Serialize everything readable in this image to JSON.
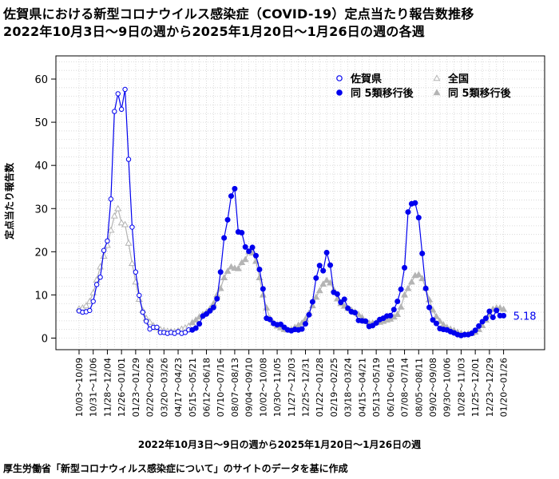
{
  "title_line1": "佐賀県における新型コロナウイルス感染症（COVID-19）定点当たり報告数推移",
  "title_line2": "2022年10月3日～9日の週から2025年1月20日～1月26日の週の各週",
  "source": "厚生労働省「新型コロナウィルス感染症について」のサイトのデータを基に作成",
  "colors": {
    "saga": "#0000ee",
    "national": "#b4b4b4",
    "grid": "#d2d2d2",
    "background": "#ffffff"
  },
  "chart_data": {
    "type": "line",
    "xlabel": "2022年10月3日～9日の週から2025年1月20日～1月26日の週",
    "ylabel": "定点当たり報告数",
    "ylim": [
      0,
      60
    ],
    "yticks": [
      0,
      10,
      20,
      30,
      40,
      50,
      60
    ],
    "grid": true,
    "legend_position": "top-right",
    "legend": [
      "佐賀県",
      "全国",
      "同 5類移行後",
      "同 5類移行後"
    ],
    "tick_labels": [
      "10/03~10/09",
      "10/31~11/06",
      "11/28~12/04",
      "12/26~01/01",
      "01/23~01/29",
      "02/20~02/26",
      "03/20~03/26",
      "04/17~04/23",
      "05/15~05/21",
      "06/12~06/18",
      "07/10~07/16",
      "08/07~08/13",
      "09/04~09/10",
      "10/02~10/08",
      "10/30~11/05",
      "11/27~12/03",
      "12/25~12/31",
      "01/22~01/28",
      "02/19~02/25",
      "03/18~03/24",
      "04/15~04/21",
      "05/13~05/19",
      "06/10~06/16",
      "07/08~07/14",
      "08/05~08/11",
      "09/02~09/08",
      "09/30~10/06",
      "10/28~11/03",
      "11/25~12/01",
      "12/23~12/29",
      "01/20~01/26"
    ],
    "tick_every": 4,
    "split_index": 32,
    "last_value_label": "5.18",
    "series": [
      {
        "name": "佐賀県",
        "values": [
          6.3,
          6.0,
          6.1,
          6.4,
          8.5,
          12.4,
          14.1,
          20.3,
          22.5,
          32.2,
          52.5,
          56.6,
          53.0,
          57.6,
          41.4,
          25.7,
          15.3,
          9.9,
          6.0,
          3.9,
          2.1,
          2.5,
          2.5,
          1.3,
          1.3,
          1.1,
          1.3,
          1.1,
          1.5,
          1.1,
          1.3,
          1.9,
          1.9,
          2.3,
          3.3,
          5.1,
          5.6,
          6.3,
          7.1,
          9.1,
          15.3,
          23.2,
          27.4,
          32.9,
          34.6,
          24.6,
          24.4,
          21.1,
          20.1,
          21.0,
          19.1,
          15.9,
          11.4,
          4.6,
          4.3,
          3.4,
          3.1,
          3.2,
          2.5,
          1.9,
          1.7,
          2.0,
          1.9,
          2.1,
          3.3,
          5.4,
          8.4,
          13.9,
          16.8,
          15.6,
          19.8,
          16.9,
          10.6,
          10.2,
          8.3,
          9.0,
          6.9,
          6.1,
          5.9,
          4.1,
          4.0,
          3.9,
          2.7,
          2.9,
          3.5,
          4.3,
          4.6,
          5.1,
          5.2,
          6.6,
          8.5,
          11.3,
          16.3,
          29.2,
          31.1,
          31.3,
          27.9,
          19.6,
          11.5,
          7.1,
          4.2,
          3.4,
          2.2,
          2.0,
          1.9,
          1.5,
          1.2,
          0.8,
          0.6,
          0.8,
          0.8,
          1.1,
          1.8,
          2.8,
          3.8,
          4.6,
          6.2,
          4.8,
          6.4,
          5.2,
          5.2
        ]
      },
      {
        "name": "全国",
        "values": [
          6.8,
          7.0,
          7.5,
          8.5,
          10.5,
          13.5,
          16.5,
          19.0,
          21.5,
          25.0,
          28.3,
          30.0,
          26.7,
          26.3,
          22.0,
          17.3,
          13.0,
          9.0,
          6.4,
          4.6,
          3.7,
          2.9,
          2.4,
          2.0,
          1.8,
          1.6,
          1.5,
          1.5,
          1.7,
          2.1,
          2.4,
          2.8,
          3.6,
          4.2,
          4.9,
          5.5,
          6.0,
          6.8,
          8.0,
          10.0,
          11.5,
          14.0,
          15.5,
          16.5,
          16.2,
          16.1,
          17.5,
          18.2,
          20.0,
          19.7,
          17.8,
          14.0,
          10.0,
          7.0,
          4.5,
          3.5,
          2.8,
          2.4,
          2.0,
          1.9,
          2.0,
          2.5,
          3.0,
          3.5,
          4.4,
          5.8,
          7.5,
          9.5,
          11.0,
          12.5,
          13.4,
          12.8,
          11.2,
          9.1,
          8.0,
          7.4,
          6.9,
          6.5,
          6.0,
          5.5,
          4.8,
          3.9,
          3.5,
          3.5,
          3.6,
          3.7,
          3.9,
          4.2,
          4.4,
          4.9,
          5.5,
          7.2,
          10.0,
          11.5,
          13.0,
          14.5,
          14.7,
          13.8,
          11.6,
          8.9,
          6.5,
          5.0,
          3.9,
          3.1,
          2.5,
          2.1,
          1.8,
          1.4,
          1.1,
          0.9,
          1.0,
          1.1,
          1.4,
          2.0,
          2.9,
          4.2,
          5.4,
          6.7,
          7.0,
          7.0,
          6.7
        ]
      }
    ]
  }
}
